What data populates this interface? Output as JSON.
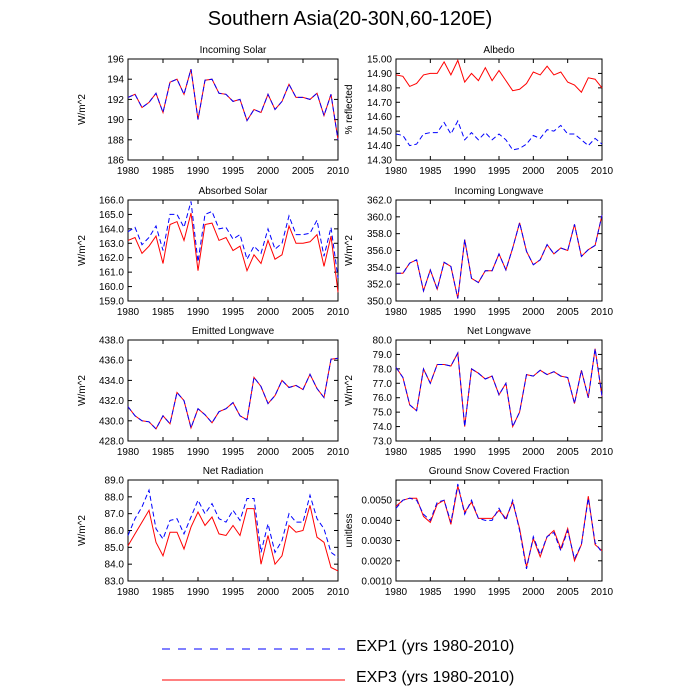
{
  "title": "Southern Asia(20-30N,60-120E)",
  "colors": {
    "exp1": "#0000ff",
    "exp3": "#ff0000"
  },
  "legend": [
    {
      "label": "EXP1 (yrs 1980-2010)",
      "style": "dashed",
      "color": "#0000ff"
    },
    {
      "label": "EXP3 (yrs 1980-2010)",
      "style": "solid",
      "color": "#ff0000"
    }
  ],
  "chart_data": [
    {
      "type": "line",
      "title": "Incoming Solar",
      "ylabel": "W/m^2",
      "ylim": [
        186,
        196
      ],
      "yticks": [
        "186",
        "188",
        "190",
        "192",
        "194",
        "196"
      ],
      "ytick_values": [
        186,
        188,
        190,
        192,
        194,
        196
      ],
      "xlim": [
        1980,
        2010
      ],
      "xticks": [
        "1980",
        "1985",
        "1990",
        "1995",
        "2000",
        "2005",
        "2010"
      ],
      "series": [
        {
          "name": "EXP1",
          "values": [
            192.2,
            192.5,
            191.2,
            191.7,
            192.6,
            190.7,
            193.7,
            194.0,
            192.5,
            195.0,
            190.0,
            193.9,
            194.0,
            192.6,
            192.5,
            191.8,
            192.0,
            189.9,
            191.0,
            190.7,
            192.5,
            191.0,
            191.8,
            193.5,
            192.2,
            192.2,
            192.0,
            192.6,
            190.4,
            192.5,
            188.0
          ]
        },
        {
          "name": "EXP3",
          "values": [
            192.2,
            192.5,
            191.2,
            191.7,
            192.6,
            190.7,
            193.7,
            194.0,
            192.5,
            195.0,
            190.0,
            193.9,
            194.0,
            192.6,
            192.5,
            191.8,
            192.0,
            189.9,
            191.0,
            190.7,
            192.5,
            191.0,
            191.8,
            193.5,
            192.2,
            192.2,
            192.0,
            192.6,
            190.4,
            192.5,
            188.0
          ]
        }
      ]
    },
    {
      "type": "line",
      "title": "Albedo",
      "ylabel": "% reflected",
      "ylim": [
        14.3,
        15.0
      ],
      "yticks": [
        "14.30",
        "14.40",
        "14.50",
        "14.60",
        "14.70",
        "14.80",
        "14.90",
        "15.00"
      ],
      "ytick_values": [
        14.3,
        14.4,
        14.5,
        14.6,
        14.7,
        14.8,
        14.9,
        15.0
      ],
      "xlim": [
        1980,
        2010
      ],
      "xticks": [
        "1980",
        "1985",
        "1990",
        "1995",
        "2000",
        "2005",
        "2010"
      ],
      "series": [
        {
          "name": "EXP1",
          "values": [
            14.48,
            14.47,
            14.4,
            14.41,
            14.48,
            14.49,
            14.49,
            14.56,
            14.48,
            14.57,
            14.44,
            14.49,
            14.44,
            14.49,
            14.44,
            14.48,
            14.44,
            14.37,
            14.38,
            14.41,
            14.47,
            14.45,
            14.51,
            14.5,
            14.54,
            14.48,
            14.48,
            14.44,
            14.4,
            14.45,
            14.41
          ]
        },
        {
          "name": "EXP3",
          "values": [
            14.89,
            14.88,
            14.81,
            14.83,
            14.89,
            14.9,
            14.9,
            14.98,
            14.89,
            14.99,
            14.84,
            14.9,
            14.85,
            14.94,
            14.85,
            14.92,
            14.85,
            14.78,
            14.79,
            14.83,
            14.91,
            14.89,
            14.95,
            14.89,
            14.91,
            14.84,
            14.82,
            14.77,
            14.87,
            14.86,
            14.8
          ]
        }
      ]
    },
    {
      "type": "line",
      "title": "Absorbed Solar",
      "ylabel": "W/m^2",
      "ylim": [
        159.0,
        166.0
      ],
      "yticks": [
        "159.0",
        "160.0",
        "161.0",
        "162.0",
        "163.0",
        "164.0",
        "165.0",
        "166.0"
      ],
      "ytick_values": [
        159,
        160,
        161,
        162,
        163,
        164,
        165,
        166
      ],
      "xlim": [
        1980,
        2010
      ],
      "xticks": [
        "1980",
        "1985",
        "1990",
        "1995",
        "2000",
        "2005",
        "2010"
      ],
      "series": [
        {
          "name": "EXP1",
          "values": [
            163.8,
            164.1,
            162.9,
            163.4,
            164.2,
            162.5,
            165.0,
            165.0,
            164.1,
            165.9,
            161.7,
            165.0,
            165.2,
            164.0,
            164.1,
            163.3,
            163.6,
            161.9,
            162.8,
            162.3,
            164.0,
            162.6,
            163.0,
            164.9,
            163.6,
            163.6,
            163.7,
            164.6,
            162.1,
            164.1,
            160.6
          ]
        },
        {
          "name": "EXP3",
          "values": [
            163.2,
            163.4,
            162.3,
            162.8,
            163.5,
            161.6,
            164.3,
            164.5,
            163.2,
            165.1,
            161.1,
            164.3,
            164.4,
            163.2,
            163.4,
            162.5,
            162.8,
            161.1,
            162.2,
            161.6,
            163.2,
            161.9,
            162.2,
            164.2,
            163.0,
            163.0,
            163.1,
            163.6,
            161.4,
            163.5,
            159.6
          ]
        }
      ]
    },
    {
      "type": "line",
      "title": "Incoming Longwave",
      "ylabel": "W/m^2",
      "ylim": [
        350.0,
        362.0
      ],
      "yticks": [
        "350.0",
        "352.0",
        "354.0",
        "356.0",
        "358.0",
        "360.0",
        "362.0"
      ],
      "ytick_values": [
        350,
        352,
        354,
        356,
        358,
        360,
        362
      ],
      "xlim": [
        1980,
        2010
      ],
      "xticks": [
        "1980",
        "1985",
        "1990",
        "1995",
        "2000",
        "2005",
        "2010"
      ],
      "series": [
        {
          "name": "EXP1",
          "values": [
            353.3,
            353.3,
            354.5,
            354.9,
            351.2,
            353.7,
            351.4,
            354.6,
            354.1,
            350.3,
            357.3,
            352.7,
            352.2,
            353.6,
            353.6,
            355.6,
            353.7,
            356.3,
            359.3,
            355.9,
            354.3,
            354.9,
            356.7,
            355.6,
            356.3,
            356.0,
            359.1,
            355.3,
            356.1,
            356.6,
            360.2
          ]
        },
        {
          "name": "EXP3",
          "values": [
            353.3,
            353.3,
            354.5,
            354.9,
            351.2,
            353.7,
            351.4,
            354.6,
            354.1,
            350.3,
            357.3,
            352.7,
            352.2,
            353.6,
            353.6,
            355.6,
            353.7,
            356.3,
            359.3,
            355.9,
            354.3,
            354.9,
            356.7,
            355.6,
            356.3,
            356.0,
            359.1,
            355.3,
            356.1,
            356.6,
            360.2
          ]
        }
      ]
    },
    {
      "type": "line",
      "title": "Emitted Longwave",
      "ylabel": "W/m^2",
      "ylim": [
        428.0,
        438.0
      ],
      "yticks": [
        "428.0",
        "430.0",
        "432.0",
        "434.0",
        "436.0",
        "438.0"
      ],
      "ytick_values": [
        428,
        430,
        432,
        434,
        436,
        438
      ],
      "xlim": [
        1980,
        2010
      ],
      "xticks": [
        "1980",
        "1985",
        "1990",
        "1995",
        "2000",
        "2005",
        "2010"
      ],
      "series": [
        {
          "name": "EXP1",
          "values": [
            431.4,
            430.5,
            430.0,
            429.9,
            429.2,
            430.5,
            429.7,
            432.8,
            432.0,
            429.3,
            431.2,
            430.6,
            429.8,
            430.9,
            431.2,
            431.8,
            430.5,
            430.1,
            434.3,
            433.4,
            431.7,
            432.5,
            434.0,
            433.3,
            433.5,
            433.1,
            434.6,
            433.2,
            432.3,
            436.1,
            436.2
          ]
        },
        {
          "name": "EXP3",
          "values": [
            431.4,
            430.5,
            430.0,
            429.9,
            429.2,
            430.5,
            429.7,
            432.8,
            432.0,
            429.3,
            431.2,
            430.6,
            429.8,
            430.9,
            431.2,
            431.8,
            430.5,
            430.1,
            434.3,
            433.4,
            431.7,
            432.5,
            434.0,
            433.3,
            433.5,
            433.1,
            434.6,
            433.2,
            432.3,
            436.1,
            436.2
          ]
        }
      ]
    },
    {
      "type": "line",
      "title": "Net Longwave",
      "ylabel": "W/m^2",
      "ylim": [
        73.0,
        80.0
      ],
      "yticks": [
        "73.0",
        "74.0",
        "75.0",
        "76.0",
        "77.0",
        "78.0",
        "79.0",
        "80.0"
      ],
      "ytick_values": [
        73,
        74,
        75,
        76,
        77,
        78,
        79,
        80
      ],
      "xlim": [
        1980,
        2010
      ],
      "xticks": [
        "1980",
        "1985",
        "1990",
        "1995",
        "2000",
        "2005",
        "2010"
      ],
      "series": [
        {
          "name": "EXP1",
          "values": [
            78.1,
            77.4,
            75.5,
            75.1,
            78.0,
            77.0,
            78.3,
            78.3,
            78.2,
            79.1,
            74.0,
            78.0,
            77.7,
            77.3,
            77.5,
            76.2,
            77.0,
            74.0,
            75.0,
            77.6,
            77.5,
            77.9,
            77.6,
            77.8,
            77.5,
            77.4,
            75.6,
            77.9,
            76.0,
            79.4,
            76.1
          ]
        },
        {
          "name": "EXP3",
          "values": [
            78.1,
            77.4,
            75.5,
            75.1,
            78.0,
            77.0,
            78.3,
            78.3,
            78.2,
            79.1,
            74.0,
            78.0,
            77.7,
            77.3,
            77.5,
            76.2,
            77.0,
            74.0,
            75.0,
            77.6,
            77.5,
            77.9,
            77.6,
            77.8,
            77.5,
            77.4,
            75.6,
            77.9,
            76.0,
            79.4,
            76.1
          ]
        }
      ]
    },
    {
      "type": "line",
      "title": "Net Radiation",
      "ylabel": "W/m^2",
      "ylim": [
        83.0,
        89.0
      ],
      "yticks": [
        "83.0",
        "84.0",
        "85.0",
        "86.0",
        "87.0",
        "88.0",
        "89.0"
      ],
      "ytick_values": [
        83,
        84,
        85,
        86,
        87,
        88,
        89
      ],
      "xlim": [
        1980,
        2010
      ],
      "xticks": [
        "1980",
        "1985",
        "1990",
        "1995",
        "2000",
        "2005",
        "2010"
      ],
      "series": [
        {
          "name": "EXP1",
          "values": [
            85.7,
            86.7,
            87.4,
            88.4,
            86.1,
            85.5,
            86.6,
            86.7,
            85.8,
            86.8,
            87.8,
            87.0,
            87.6,
            86.7,
            86.5,
            87.2,
            86.6,
            87.9,
            87.9,
            84.7,
            86.4,
            84.7,
            85.4,
            87.0,
            86.5,
            86.5,
            88.1,
            86.7,
            86.1,
            84.7,
            84.4
          ]
        },
        {
          "name": "EXP3",
          "values": [
            85.1,
            85.8,
            86.5,
            87.2,
            85.3,
            84.5,
            85.9,
            85.9,
            84.9,
            86.2,
            87.1,
            86.3,
            86.8,
            85.8,
            85.7,
            86.3,
            85.7,
            87.3,
            87.3,
            84.0,
            85.7,
            84.0,
            84.5,
            86.3,
            85.9,
            86.0,
            87.5,
            85.6,
            85.3,
            83.8,
            83.6
          ]
        }
      ]
    },
    {
      "type": "line",
      "title": "Ground Snow Covered Fraction",
      "ylabel": "unitless",
      "ylim": [
        0.001,
        0.006
      ],
      "yticks": [
        "0.0010",
        "0.0020",
        "0.0030",
        "0.0040",
        "0.0050"
      ],
      "ytick_values": [
        0.001,
        0.002,
        0.003,
        0.004,
        0.005
      ],
      "xlim": [
        1980,
        2010
      ],
      "xticks": [
        "1980",
        "1985",
        "1990",
        "1995",
        "2000",
        "2005",
        "2010"
      ],
      "series": [
        {
          "name": "EXP1",
          "values": [
            0.0046,
            0.005,
            0.0051,
            0.005,
            0.0043,
            0.004,
            0.0049,
            0.005,
            0.0039,
            0.0058,
            0.0043,
            0.005,
            0.0041,
            0.004,
            0.004,
            0.0046,
            0.004,
            0.005,
            0.0035,
            0.0016,
            0.0032,
            0.0023,
            0.0032,
            0.0034,
            0.0025,
            0.0035,
            0.0021,
            0.0028,
            0.0051,
            0.0029,
            0.0024
          ]
        },
        {
          "name": "EXP3",
          "values": [
            0.0047,
            0.005,
            0.0051,
            0.0051,
            0.0042,
            0.0039,
            0.0048,
            0.005,
            0.0038,
            0.0057,
            0.0044,
            0.0049,
            0.0041,
            0.0041,
            0.0041,
            0.0045,
            0.0041,
            0.0049,
            0.0036,
            0.0017,
            0.0031,
            0.0022,
            0.0032,
            0.0035,
            0.0026,
            0.0036,
            0.002,
            0.0028,
            0.0052,
            0.0028,
            0.0025
          ]
        }
      ]
    }
  ]
}
